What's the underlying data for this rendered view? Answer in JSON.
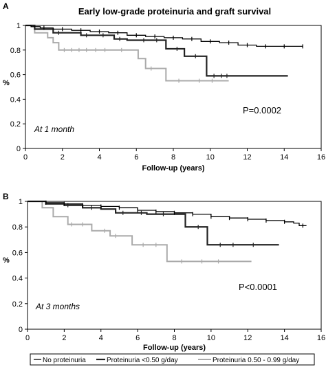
{
  "figure": {
    "title": "Early low-grade proteinuria and graft survival"
  },
  "legend": {
    "entries": [
      "No proteinuria",
      "Proteinuria <0.50 g/day",
      "Proteinuria 0.50 - 0.99 g/day"
    ]
  },
  "chart_data": [
    {
      "type": "line",
      "panel_label": "A",
      "annotation": "At 1 month",
      "pvalue": "P=0.0002",
      "xlabel": "Follow-up (years)",
      "ylabel": "%",
      "xlim": [
        0,
        16
      ],
      "ylim": [
        0,
        1
      ],
      "xticks": [
        0,
        2,
        4,
        6,
        8,
        10,
        12,
        14,
        16
      ],
      "yticks": [
        0,
        0.2,
        0.4,
        0.6,
        0.8,
        1
      ],
      "grid": false,
      "series": [
        {
          "name": "No proteinuria",
          "color": "#000000",
          "points": [
            [
              0,
              1
            ],
            [
              0.3,
              0.99
            ],
            [
              0.8,
              0.98
            ],
            [
              1.5,
              0.97
            ],
            [
              2.5,
              0.96
            ],
            [
              3.5,
              0.95
            ],
            [
              4.5,
              0.94
            ],
            [
              5.5,
              0.92
            ],
            [
              6.5,
              0.91
            ],
            [
              7.5,
              0.9
            ],
            [
              8.5,
              0.89
            ],
            [
              9.5,
              0.87
            ],
            [
              10.5,
              0.86
            ],
            [
              11.5,
              0.84
            ],
            [
              12.5,
              0.83
            ],
            [
              13.5,
              0.83
            ],
            [
              15,
              0.83
            ]
          ],
          "censor": [
            1,
            2,
            3,
            4,
            5,
            6,
            7,
            8,
            9,
            10,
            11,
            12,
            13,
            14,
            15
          ]
        },
        {
          "name": "Proteinuria <0.50 g/day",
          "color": "#222222",
          "points": [
            [
              0,
              1
            ],
            [
              0.5,
              0.97
            ],
            [
              1.5,
              0.94
            ],
            [
              3,
              0.92
            ],
            [
              4.8,
              0.89
            ],
            [
              5.5,
              0.88
            ],
            [
              7.6,
              0.88
            ],
            [
              7.6,
              0.81
            ],
            [
              8.6,
              0.81
            ],
            [
              8.6,
              0.75
            ],
            [
              9.8,
              0.75
            ],
            [
              9.8,
              0.59
            ],
            [
              14.2,
              0.59
            ]
          ],
          "censor": [
            1.8,
            3.3,
            4.2,
            5.1,
            6.4,
            7.1,
            8.2,
            9.2,
            10.2,
            10.6,
            10.9
          ]
        },
        {
          "name": "Proteinuria 0.50 - 0.99 g/day",
          "color": "#aaaaaa",
          "points": [
            [
              0,
              1
            ],
            [
              0.5,
              0.94
            ],
            [
              1.2,
              0.9
            ],
            [
              1.5,
              0.86
            ],
            [
              1.8,
              0.8
            ],
            [
              6.1,
              0.8
            ],
            [
              6.1,
              0.73
            ],
            [
              6.5,
              0.73
            ],
            [
              6.5,
              0.65
            ],
            [
              7.6,
              0.65
            ],
            [
              7.6,
              0.55
            ],
            [
              11,
              0.55
            ]
          ],
          "censor": [
            2.1,
            2.5,
            2.9,
            3.3,
            3.8,
            4.3,
            5.2,
            6.8,
            8.3,
            9.4,
            10.1
          ]
        }
      ]
    },
    {
      "type": "line",
      "panel_label": "B",
      "annotation": "At 3 months",
      "pvalue": "P<0.0001",
      "xlabel": "Follow-up (years)",
      "ylabel": "%",
      "xlim": [
        0,
        16
      ],
      "ylim": [
        0,
        1
      ],
      "xticks": [
        0,
        2,
        4,
        6,
        8,
        10,
        12,
        14,
        16
      ],
      "yticks": [
        0,
        0.2,
        0.4,
        0.6,
        0.8,
        1
      ],
      "grid": false,
      "series": [
        {
          "name": "No proteinuria",
          "color": "#000000",
          "points": [
            [
              0,
              1
            ],
            [
              1,
              0.99
            ],
            [
              2,
              0.98
            ],
            [
              3,
              0.97
            ],
            [
              4,
              0.96
            ],
            [
              5,
              0.95
            ],
            [
              6,
              0.93
            ],
            [
              7,
              0.92
            ],
            [
              8,
              0.91
            ],
            [
              9,
              0.9
            ],
            [
              10,
              0.88
            ],
            [
              11,
              0.87
            ],
            [
              12,
              0.86
            ],
            [
              13,
              0.85
            ],
            [
              14,
              0.84
            ],
            [
              14.5,
              0.83
            ],
            [
              14.8,
              0.81
            ],
            [
              15.2,
              0.81
            ]
          ],
          "censor": [
            1,
            2,
            3,
            4,
            5,
            6,
            7,
            8,
            9,
            10,
            11,
            12,
            13,
            14,
            15
          ]
        },
        {
          "name": "Proteinuria <0.50 g/day",
          "color": "#222222",
          "points": [
            [
              0,
              1
            ],
            [
              1,
              0.98
            ],
            [
              2,
              0.97
            ],
            [
              3,
              0.95
            ],
            [
              4,
              0.94
            ],
            [
              4.8,
              0.91
            ],
            [
              6.5,
              0.9
            ],
            [
              8.6,
              0.9
            ],
            [
              8.6,
              0.8
            ],
            [
              9.8,
              0.8
            ],
            [
              9.8,
              0.66
            ],
            [
              13.7,
              0.66
            ]
          ],
          "censor": [
            2.2,
            3.5,
            5.2,
            6.2,
            7.4,
            9.3,
            10.5,
            11.2,
            12.3
          ]
        },
        {
          "name": "Proteinuria 0.50 - 0.99 g/day",
          "color": "#aaaaaa",
          "points": [
            [
              0,
              1
            ],
            [
              0.8,
              0.95
            ],
            [
              1.4,
              0.88
            ],
            [
              2.2,
              0.82
            ],
            [
              3.5,
              0.77
            ],
            [
              4.5,
              0.73
            ],
            [
              5.2,
              0.73
            ],
            [
              5.7,
              0.66
            ],
            [
              7.6,
              0.66
            ],
            [
              7.6,
              0.53
            ],
            [
              12.2,
              0.53
            ]
          ],
          "censor": [
            2.4,
            3.0,
            4.2,
            4.8,
            6.3,
            7.0,
            8.4,
            9.5,
            10.4
          ]
        }
      ]
    }
  ]
}
